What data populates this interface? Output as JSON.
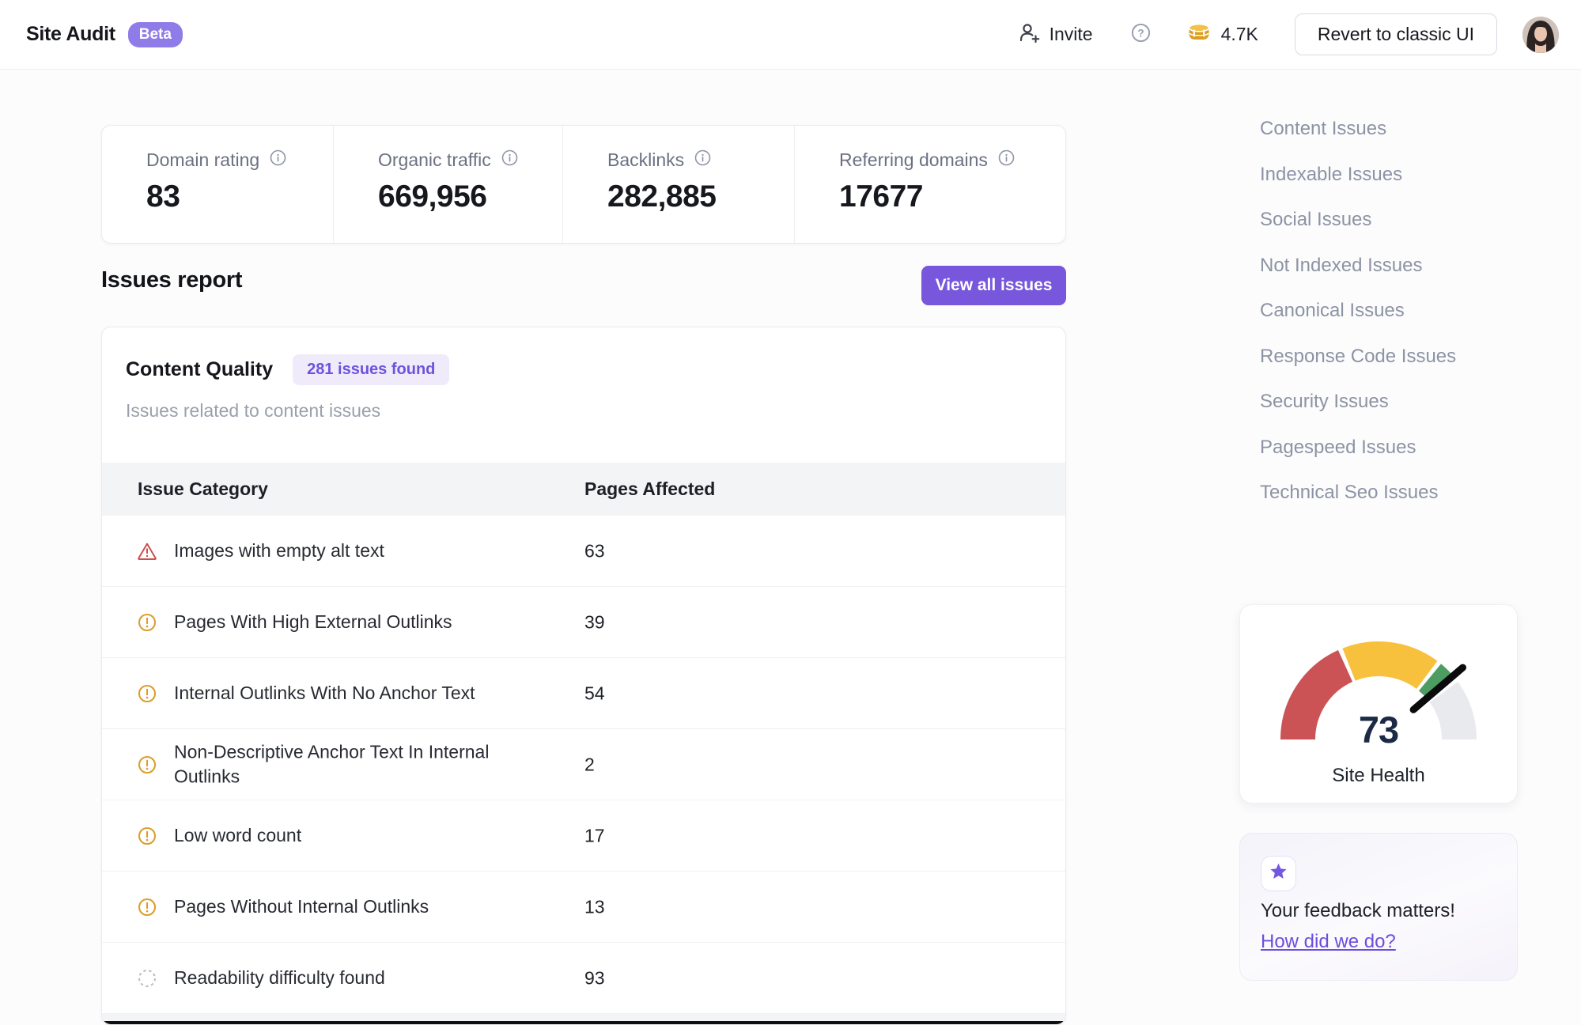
{
  "header": {
    "title": "Site Audit",
    "beta_badge": "Beta",
    "invite_label": "Invite",
    "credits": "4.7K",
    "revert_button": "Revert to classic UI"
  },
  "stats": {
    "items": [
      {
        "label": "Domain rating",
        "value": "83"
      },
      {
        "label": "Organic traffic",
        "value": "669,956"
      },
      {
        "label": "Backlinks",
        "value": "282,885"
      },
      {
        "label": "Referring domains",
        "value": "17677"
      }
    ]
  },
  "issues_report": {
    "title": "Issues report",
    "view_all_button": "View all issues"
  },
  "content_quality": {
    "title": "Content Quality",
    "badge": "281 issues found",
    "subtitle": "Issues related to content issues",
    "table": {
      "columns": [
        "Issue Category",
        "Pages Affected"
      ],
      "rows": [
        {
          "icon": "danger-triangle",
          "label": "Images with empty alt text",
          "value": "63"
        },
        {
          "icon": "warning-circle",
          "label": "Pages With High External Outlinks",
          "value": "39"
        },
        {
          "icon": "warning-circle",
          "label": "Internal Outlinks With No Anchor Text",
          "value": "54"
        },
        {
          "icon": "warning-circle",
          "label": "Non-Descriptive Anchor Text In Internal Outlinks",
          "value": "2"
        },
        {
          "icon": "warning-circle",
          "label": "Low word count",
          "value": "17"
        },
        {
          "icon": "warning-circle",
          "label": "Pages Without Internal Outlinks",
          "value": "13"
        },
        {
          "icon": "dashed-circle",
          "label": "Readability difficulty found",
          "value": "93"
        }
      ]
    }
  },
  "sidebar": {
    "items": [
      "Content Issues",
      "Indexable Issues",
      "Social Issues",
      "Not Indexed Issues",
      "Canonical Issues",
      "Response Code Issues",
      "Security Issues",
      "Pagespeed Issues",
      "Technical Seo Issues"
    ]
  },
  "site_health": {
    "value": "73",
    "label": "Site Health",
    "chart_data": {
      "type": "gauge",
      "value": 73,
      "range": [
        0,
        100
      ],
      "segments": [
        {
          "from": 0,
          "to": 36.5,
          "color": "#cb5355"
        },
        {
          "from": 38,
          "to": 70.5,
          "color": "#f8c13d"
        },
        {
          "from": 72,
          "to": 78.5,
          "color": "#4d9d62"
        },
        {
          "from": 80,
          "to": 100,
          "color": "#e8eaee"
        }
      ],
      "needle_position": 77.5,
      "needle_color": "#0b0b0e"
    }
  },
  "feedback": {
    "title": "Your feedback matters!",
    "link": "How did we do?"
  },
  "colors": {
    "accent": "#7857dc",
    "beta": "#8f7ce8",
    "badge-bg": "#efebfb",
    "badge-text": "#6d52de",
    "danger": "#cb4f4d",
    "warning": "#db9e2c",
    "muted": "#8c93a4",
    "coin": "#dd9e1e"
  }
}
